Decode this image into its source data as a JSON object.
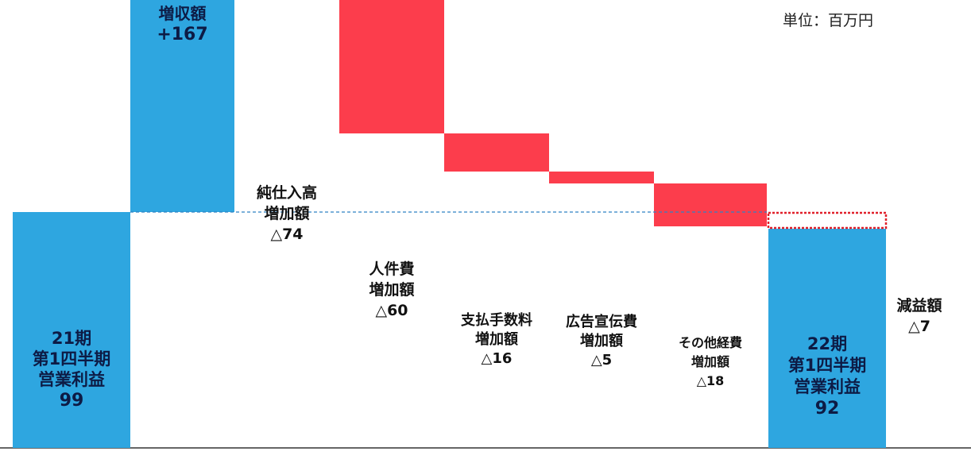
{
  "unit_label": "単位：百万円",
  "chart_data": {
    "type": "waterfall",
    "colors": {
      "total": "#2ea6e0",
      "increase": "#2ea6e0",
      "decrease": "#fc3d4c",
      "net_change_outline": "#e0202a",
      "baseline_line": "#2f82c4",
      "axis": "#333333"
    },
    "steps": [
      {
        "kind": "total",
        "value": 99,
        "label_lines": [
          "21期",
          "第1四半期",
          "営業利益",
          "99"
        ]
      },
      {
        "kind": "increase",
        "value": 167,
        "label_lines": [
          "増収額",
          "+167"
        ]
      },
      {
        "kind": "decrease",
        "value": 74,
        "label_lines": [
          "純仕入高",
          "増加額",
          "△74"
        ]
      },
      {
        "kind": "decrease",
        "value": 60,
        "label_lines": [
          "人件費",
          "増加額",
          "△60"
        ]
      },
      {
        "kind": "decrease",
        "value": 16,
        "label_lines": [
          "支払手数料",
          "増加額",
          "△16"
        ]
      },
      {
        "kind": "decrease",
        "value": 5,
        "label_lines": [
          "広告宣伝費",
          "増加額",
          "△5"
        ]
      },
      {
        "kind": "decrease",
        "value": 18,
        "label_lines": [
          "その他経費",
          "増加額",
          "△18"
        ]
      },
      {
        "kind": "total",
        "value": 92,
        "label_lines": [
          "22期",
          "第1四半期",
          "営業利益",
          "92"
        ]
      }
    ],
    "net_change": {
      "value": -7,
      "label_lines": [
        "減益額",
        "△7"
      ]
    }
  }
}
